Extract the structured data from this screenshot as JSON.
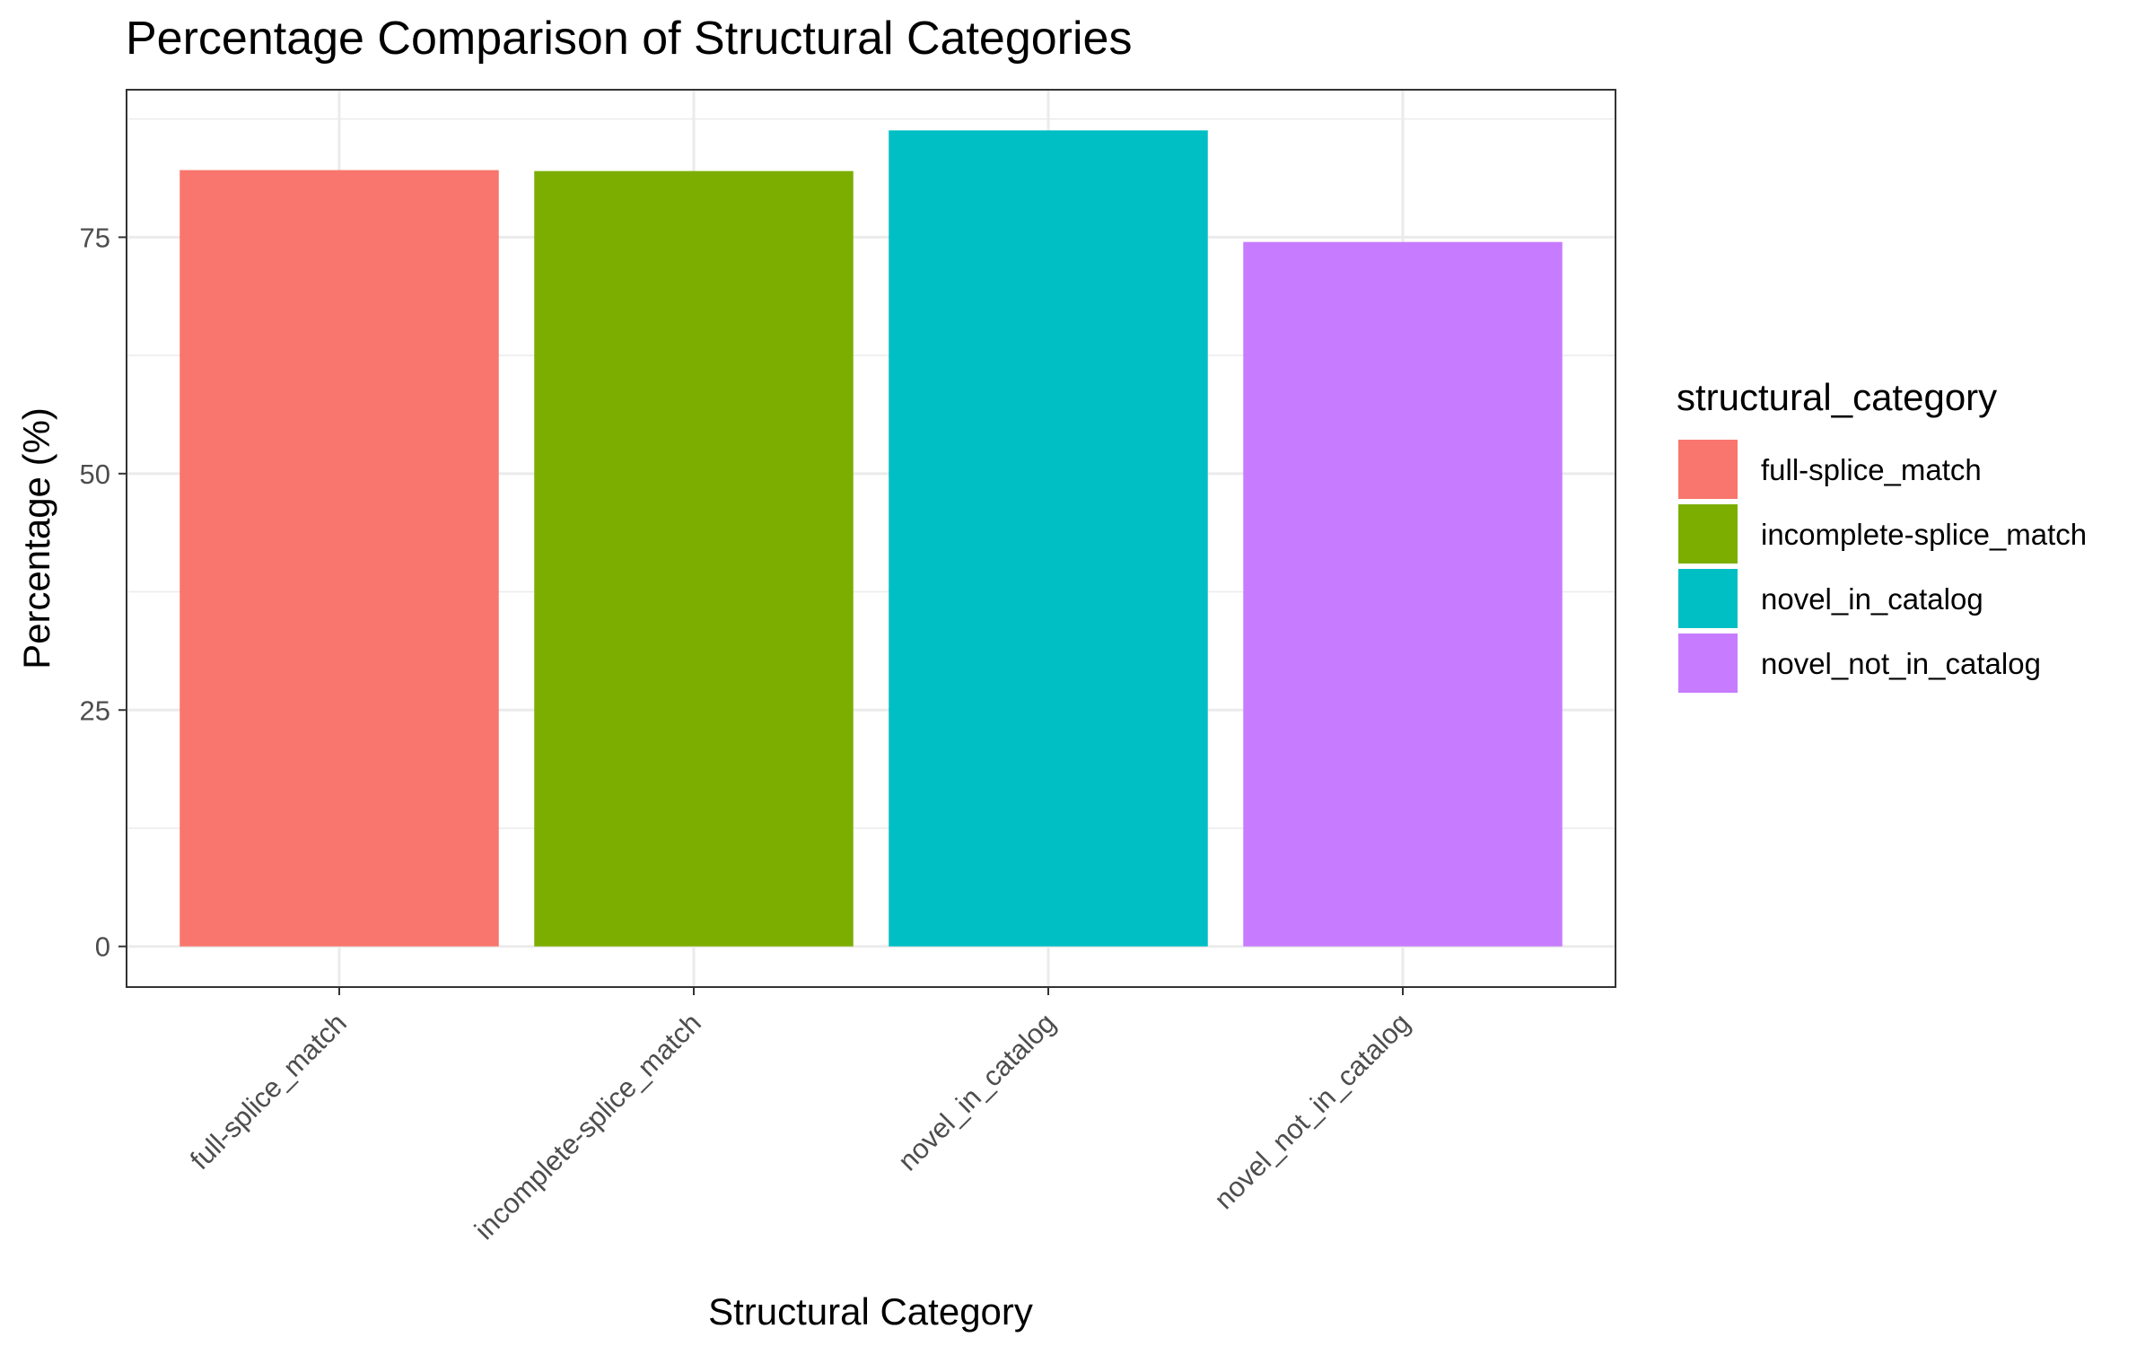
{
  "chart_data": {
    "type": "bar",
    "title": "Percentage Comparison of Structural Categories",
    "xlabel": "Structural Category",
    "ylabel": "Percentage (%)",
    "categories": [
      "full-splice_match",
      "incomplete-splice_match",
      "novel_in_catalog",
      "novel_not_in_catalog"
    ],
    "values": [
      82.1,
      82.0,
      86.3,
      74.5
    ],
    "colors": [
      "#F8766D",
      "#7CAE00",
      "#00BFC4",
      "#C77CFF"
    ],
    "ylim": [
      -4.3,
      90.6
    ],
    "yticks": [
      0,
      25,
      50,
      75
    ],
    "ytick_labels": [
      "0",
      "25",
      "50",
      "75"
    ],
    "grid": true,
    "legend": {
      "title": "structural_category",
      "position": "right",
      "entries": [
        "full-splice_match",
        "incomplete-splice_match",
        "novel_in_catalog",
        "novel_not_in_catalog"
      ]
    }
  }
}
